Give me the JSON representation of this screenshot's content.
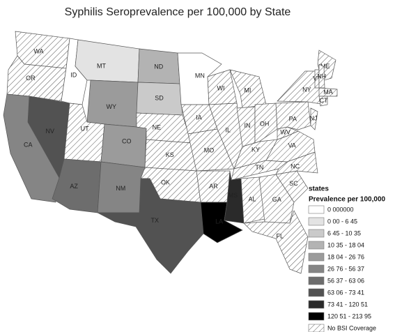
{
  "title": "Syphilis Seroprevalence per 100,000 by State",
  "legend": {
    "heading": "states",
    "subheading": "Prevalence per 100,000",
    "items": [
      {
        "label": "0 000000",
        "fill": "#ffffff"
      },
      {
        "label": "0 00 - 6 45",
        "fill": "#e3e3e3"
      },
      {
        "label": "6 45 - 10 35",
        "fill": "#cacaca"
      },
      {
        "label": "10 35 - 18 04",
        "fill": "#b3b3b3"
      },
      {
        "label": "18 04 - 26 76",
        "fill": "#9b9b9b"
      },
      {
        "label": "26 76 - 56 37",
        "fill": "#858585"
      },
      {
        "label": "56 37 - 63 06",
        "fill": "#6d6d6d"
      },
      {
        "label": "63 06 - 73 41",
        "fill": "#525252"
      },
      {
        "label": "73 41 - 120 51",
        "fill": "#2a2a2a"
      },
      {
        "label": "120 51 - 213 95",
        "fill": "#000000"
      },
      {
        "label": "No BSI Coverage",
        "fill": "hatched"
      }
    ]
  },
  "states": [
    {
      "label": "WA",
      "fill": "hatched"
    },
    {
      "label": "OR",
      "fill": "hatched"
    },
    {
      "label": "ID",
      "fill": "#ffffff"
    },
    {
      "label": "MT",
      "fill": "#e3e3e3"
    },
    {
      "label": "WY",
      "fill": "#9b9b9b"
    },
    {
      "label": "NV",
      "fill": "#525252"
    },
    {
      "label": "CA",
      "fill": "#858585"
    },
    {
      "label": "UT",
      "fill": "hatched"
    },
    {
      "label": "AZ",
      "fill": "#6d6d6d"
    },
    {
      "label": "CO",
      "fill": "#9b9b9b"
    },
    {
      "label": "NM",
      "fill": "#858585"
    },
    {
      "label": "ND",
      "fill": "#b3b3b3"
    },
    {
      "label": "SD",
      "fill": "#cacaca"
    },
    {
      "label": "NE",
      "fill": "hatched"
    },
    {
      "label": "KS",
      "fill": "hatched"
    },
    {
      "label": "OK",
      "fill": "hatched"
    },
    {
      "label": "TX",
      "fill": "#525252"
    },
    {
      "label": "MN",
      "fill": "#ffffff"
    },
    {
      "label": "IA",
      "fill": "hatched"
    },
    {
      "label": "MO",
      "fill": "hatched"
    },
    {
      "label": "AR",
      "fill": "hatched"
    },
    {
      "label": "LA",
      "fill": "#000000"
    },
    {
      "label": "WI",
      "fill": "hatched"
    },
    {
      "label": "IL",
      "fill": "hatched"
    },
    {
      "label": "MI",
      "fill": "hatched"
    },
    {
      "label": "IN",
      "fill": "hatched"
    },
    {
      "label": "OH",
      "fill": "hatched"
    },
    {
      "label": "KY",
      "fill": "hatched"
    },
    {
      "label": "TN",
      "fill": "hatched"
    },
    {
      "label": "MS",
      "fill": "#2a2a2a"
    },
    {
      "label": "AL",
      "fill": "hatched"
    },
    {
      "label": "GA",
      "fill": "hatched"
    },
    {
      "label": "FL",
      "fill": "hatched"
    },
    {
      "label": "SC",
      "fill": "hatched"
    },
    {
      "label": "NC",
      "fill": "hatched"
    },
    {
      "label": "VA",
      "fill": "hatched"
    },
    {
      "label": "WV",
      "fill": "hatched"
    },
    {
      "label": "PA",
      "fill": "hatched"
    },
    {
      "label": "NY",
      "fill": "hatched"
    },
    {
      "label": "NJ",
      "fill": "hatched"
    },
    {
      "label": "ME",
      "fill": "hatched"
    },
    {
      "label": "VT",
      "fill": "hatched"
    },
    {
      "label": "NH",
      "fill": "hatched"
    },
    {
      "label": "MA",
      "fill": "hatched"
    },
    {
      "label": "CT",
      "fill": "hatched"
    }
  ]
}
